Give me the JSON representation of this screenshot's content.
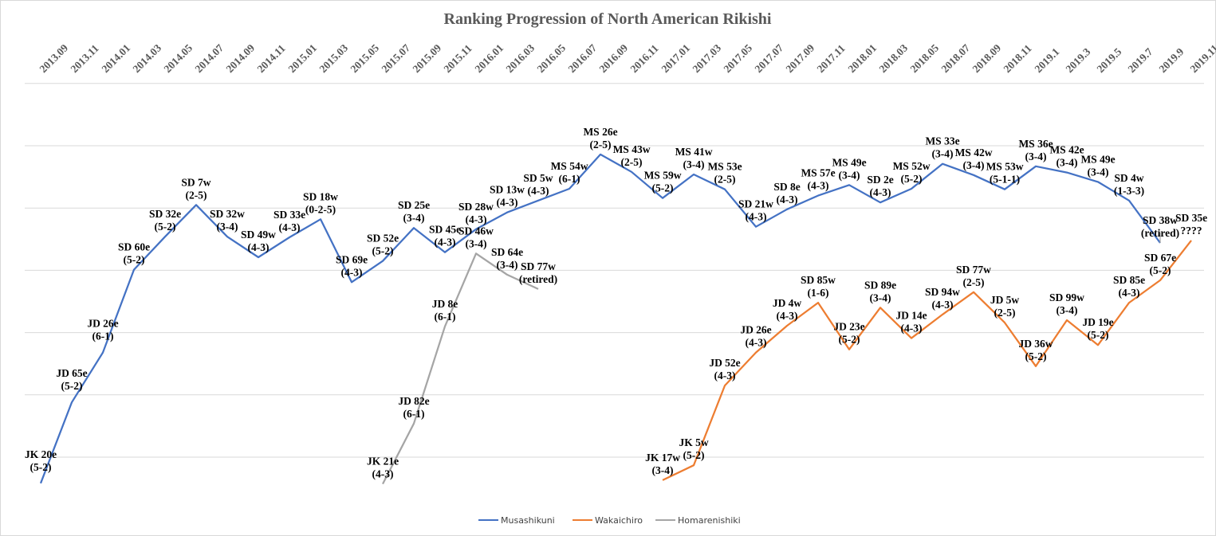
{
  "chart_data": {
    "type": "line",
    "title": "Ranking Progression of North American Rikishi",
    "xlabel": "",
    "ylabel": "",
    "y_units_note": "relative rank level (gridline units, higher = better rank)",
    "ylim": [
      -0.6,
      6
    ],
    "grid": true,
    "legend_position": "bottom",
    "x": [
      "2013.09",
      "2013.11",
      "2014.01",
      "2014.03",
      "2014.05",
      "2014.07",
      "2014.09",
      "2014.11",
      "2015.01",
      "2015.03",
      "2015.05",
      "2015.07",
      "2015.09",
      "2015.11",
      "2016.01",
      "2016.03",
      "2016.05",
      "2016.07",
      "2016.09",
      "2016.11",
      "2017.01",
      "2017.03",
      "2017.05",
      "2017.07",
      "2017.09",
      "2017.11",
      "2018.01",
      "2018.03",
      "2018.05",
      "2018.07",
      "2018.09",
      "2018.11",
      "2019.1",
      "2019.3",
      "2019.5",
      "2019.7",
      "2019.9",
      "2019.11"
    ],
    "series": [
      {
        "name": "Musashikuni",
        "color": "#4472c4",
        "start_index": 0,
        "values": [
          -0.42,
          0.88,
          1.68,
          3.01,
          3.54,
          4.05,
          3.54,
          3.21,
          3.53,
          3.82,
          2.81,
          3.15,
          3.68,
          3.29,
          3.66,
          3.93,
          4.12,
          4.31,
          4.86,
          4.58,
          4.16,
          4.54,
          4.3,
          3.7,
          3.98,
          4.2,
          4.37,
          4.09,
          4.31,
          4.71,
          4.53,
          4.3,
          4.67,
          4.57,
          4.42,
          4.12,
          3.44
        ],
        "labels": [
          [
            "JK 20e",
            "(5-2)"
          ],
          [
            "JD 65e",
            "(5-2)"
          ],
          [
            "JD 26e",
            "(6-1)"
          ],
          [
            "SD 60e",
            "(5-2)"
          ],
          [
            "SD 32e",
            "(5-2)"
          ],
          [
            "SD 7w",
            "(2-5)"
          ],
          [
            "SD 32w",
            "(3-4)"
          ],
          [
            "SD 49w",
            "(4-3)"
          ],
          [
            "SD 33e",
            "(4-3)"
          ],
          [
            "SD 18w",
            "(0-2-5)"
          ],
          [
            "SD 69e",
            "(4-3)"
          ],
          [
            "SD 52e",
            "(5-2)"
          ],
          [
            "SD 25e",
            "(3-4)"
          ],
          [
            "SD 45e",
            "(4-3)"
          ],
          [
            "SD 28w",
            "(4-3)"
          ],
          [
            "SD 13w",
            "(4-3)"
          ],
          [
            "SD 5w",
            "(4-3)"
          ],
          [
            "MS 54w",
            "(6-1)"
          ],
          [
            "MS 26e",
            "(2-5)"
          ],
          [
            "MS 43w",
            "(2-5)"
          ],
          [
            "MS 59w",
            "(5-2)"
          ],
          [
            "MS 41w",
            "(3-4)"
          ],
          [
            "MS 53e",
            "(2-5)"
          ],
          [
            "SD 21w",
            "(4-3)"
          ],
          [
            "SD 8e",
            "(4-3)"
          ],
          [
            "MS 57e",
            "(4-3)"
          ],
          [
            "MS 49e",
            "(3-4)"
          ],
          [
            "SD 2e",
            "(4-3)"
          ],
          [
            "MS 52w",
            "(5-2)"
          ],
          [
            "MS 33e",
            "(3-4)"
          ],
          [
            "MS 42w",
            "(3-4)"
          ],
          [
            "MS 53w",
            "(5-1-1)"
          ],
          [
            "MS 36e",
            "(3-4)"
          ],
          [
            "MS 42e",
            "(3-4)"
          ],
          [
            "MS 49e",
            "(3-4)"
          ],
          [
            "SD 4w",
            "(1-3-3)"
          ],
          [
            "SD 38w",
            "(retired)"
          ]
        ]
      },
      {
        "name": "Wakaichiro",
        "color": "#ed7d31",
        "start_index": 20,
        "values": [
          -0.37,
          -0.13,
          1.15,
          1.68,
          2.11,
          2.48,
          1.73,
          2.4,
          1.91,
          2.29,
          2.65,
          2.16,
          1.46,
          2.2,
          1.8,
          2.48,
          2.84,
          3.48
        ],
        "labels": [
          [
            "JK 17w",
            "(3-4)"
          ],
          [
            "JK 5w",
            "(5-2)"
          ],
          [
            "JD 52e",
            "(4-3)"
          ],
          [
            "JD 26e",
            "(4-3)"
          ],
          [
            "JD 4w",
            "(4-3)"
          ],
          [
            "SD 85w",
            "(1-6)"
          ],
          [
            "JD 23e",
            "(5-2)"
          ],
          [
            "SD 89e",
            "(3-4)"
          ],
          [
            "JD 14e",
            "(4-3)"
          ],
          [
            "SD 94w",
            "(4-3)"
          ],
          [
            "SD 77w",
            "(2-5)"
          ],
          [
            "JD 5w",
            "(2-5)"
          ],
          [
            "JD 36w",
            "(5-2)"
          ],
          [
            "SD 99w",
            "(3-4)"
          ],
          [
            "JD 19e",
            "(5-2)"
          ],
          [
            "SD 85e",
            "(4-3)"
          ],
          [
            "SD 67e",
            "(5-2)"
          ],
          [
            "SD 35e",
            "????"
          ]
        ]
      },
      {
        "name": "Homarenishiki",
        "color": "#a5a5a5",
        "start_index": 11,
        "values": [
          -0.43,
          0.54,
          2.1,
          3.27,
          2.93,
          2.7
        ],
        "labels": [
          [
            "JK 21e",
            "(4-3)"
          ],
          [
            "JD 82e",
            "(6-1)"
          ],
          [
            "JD 8e",
            "(6-1)"
          ],
          [
            "SD 46w",
            "(3-4)"
          ],
          [
            "SD 64e",
            "(3-4)"
          ],
          [
            "SD 77w",
            "(retired)"
          ]
        ]
      }
    ]
  }
}
